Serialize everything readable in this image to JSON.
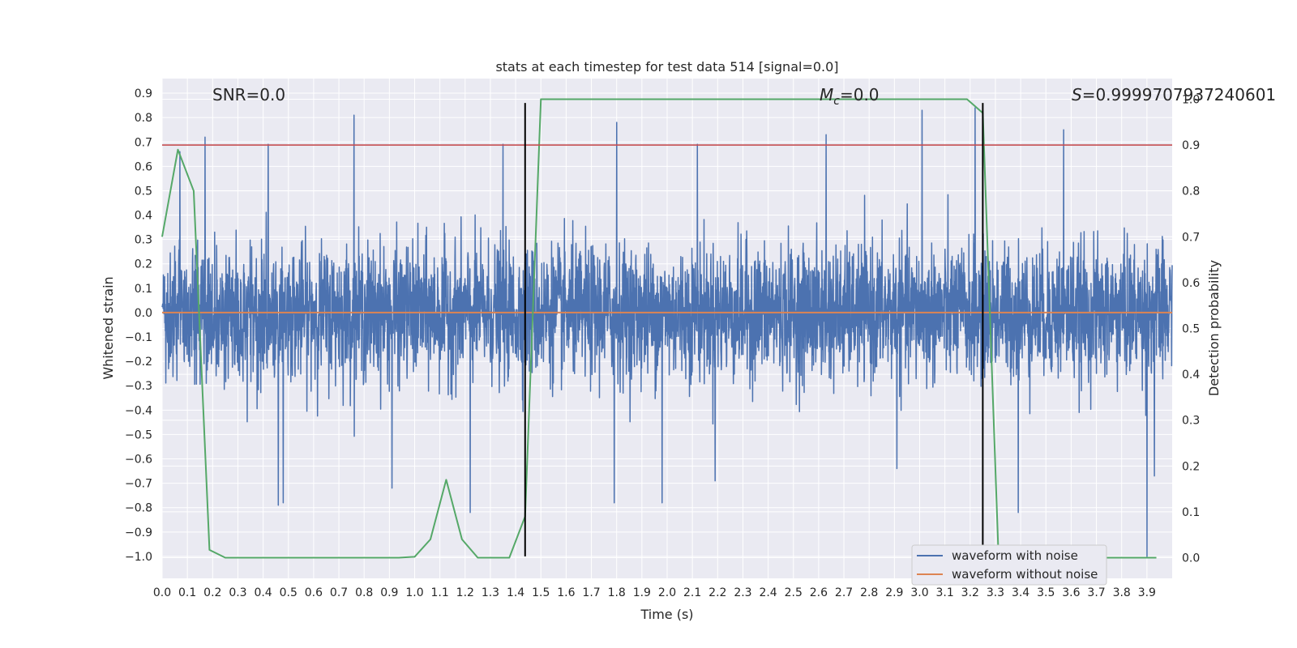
{
  "chart_data": {
    "type": "line",
    "title": "stats at each timestep for test data 514 [signal=0.0]",
    "xlabel": "Time (s)",
    "ylabel": "Whitened strain",
    "y2label": "Detection probability",
    "xlim": [
      0.0,
      4.0
    ],
    "ylim": [
      -1.09,
      0.96
    ],
    "y2lim": [
      -0.045,
      1.045
    ],
    "xticks": [
      "0.0",
      "0.1",
      "0.2",
      "0.3",
      "0.4",
      "0.5",
      "0.6",
      "0.7",
      "0.8",
      "0.9",
      "1.0",
      "1.1",
      "1.2",
      "1.3",
      "1.4",
      "1.5",
      "1.6",
      "1.7",
      "1.8",
      "1.9",
      "2.0",
      "2.1",
      "2.2",
      "2.3",
      "2.4",
      "2.5",
      "2.6",
      "2.7",
      "2.8",
      "2.9",
      "3.0",
      "3.1",
      "3.2",
      "3.3",
      "3.4",
      "3.5",
      "3.6",
      "3.7",
      "3.8",
      "3.9"
    ],
    "yticks": [
      "0.9",
      "0.8",
      "0.7",
      "0.6",
      "0.5",
      "0.4",
      "0.3",
      "0.2",
      "0.1",
      "0.0",
      "−0.1",
      "−0.2",
      "−0.3",
      "−0.4",
      "−0.5",
      "−0.6",
      "−0.7",
      "−0.8",
      "−0.9",
      "−1.0"
    ],
    "y2ticks": [
      "1.0",
      "0.9",
      "0.8",
      "0.7",
      "0.6",
      "0.5",
      "0.4",
      "0.3",
      "0.2",
      "0.1",
      "0.0"
    ],
    "grid": true,
    "legend_position": "lower-right",
    "annotations": {
      "snr": "SNR=0.0",
      "mc_symbol": "M",
      "mc_subscript": "c",
      "mc_value": "=0.0",
      "s_symbol": "S",
      "s_value": "=0.9999707937240601"
    },
    "series": [
      {
        "name": "waveform with noise",
        "color": "#4c72b0",
        "axis": "left",
        "description_values": "dense random noise between roughly -1.0 and 0.83",
        "spikes": [
          [
            0.07,
            0.66
          ],
          [
            0.17,
            0.72
          ],
          [
            0.42,
            0.69
          ],
          [
            0.76,
            0.81
          ],
          [
            1.35,
            0.69
          ],
          [
            1.8,
            0.78
          ],
          [
            2.12,
            0.69
          ],
          [
            2.63,
            0.73
          ],
          [
            3.01,
            0.83
          ],
          [
            3.22,
            0.84
          ],
          [
            3.57,
            0.75
          ],
          [
            0.46,
            -0.79
          ],
          [
            0.48,
            -0.78
          ],
          [
            0.91,
            -0.72
          ],
          [
            1.22,
            -0.82
          ],
          [
            1.79,
            -0.78
          ],
          [
            1.98,
            -0.78
          ],
          [
            2.19,
            -0.69
          ],
          [
            2.91,
            -0.64
          ],
          [
            3.39,
            -0.82
          ],
          [
            3.9,
            -1.0
          ],
          [
            3.93,
            -0.67
          ]
        ]
      },
      {
        "name": "waveform without noise",
        "color": "#dd8452",
        "axis": "left",
        "x": [
          0.0,
          4.0
        ],
        "y": [
          0.0,
          0.0
        ]
      },
      {
        "name": "detection probability",
        "color": "#55a868",
        "axis": "right",
        "x": [
          0.0,
          0.0625,
          0.125,
          0.1875,
          0.25,
          0.3125,
          0.375,
          0.4375,
          0.5,
          0.5625,
          0.625,
          0.6875,
          0.75,
          0.8125,
          0.875,
          0.9375,
          1.0,
          1.0625,
          1.125,
          1.1875,
          1.25,
          1.3125,
          1.375,
          1.4375,
          1.5,
          1.5625,
          1.625,
          1.6875,
          1.75,
          2.0,
          2.5,
          3.0,
          3.1875,
          3.25,
          3.3125,
          3.375,
          3.4375,
          3.5,
          3.5625,
          3.625,
          3.6875,
          3.75,
          3.8125,
          3.875,
          3.9375
        ],
        "y": [
          0.7,
          0.89,
          0.8,
          0.017,
          0.0,
          0.0,
          0.0,
          0.0,
          0.0,
          0.0,
          0.0,
          0.0,
          0.0,
          0.0,
          0.0,
          0.0,
          0.002,
          0.04,
          0.17,
          0.04,
          0.0,
          0.0,
          0.0,
          0.09,
          1.0,
          1.0,
          1.0,
          1.0,
          1.0,
          1.0,
          1.0,
          1.0,
          1.0,
          0.97,
          0.0,
          0.0,
          0.0,
          0.0,
          0.0,
          0.0,
          0.0,
          0.0,
          0.0,
          0.0,
          0.0
        ]
      },
      {
        "name": "threshold",
        "color": "#c44e52",
        "axis": "right",
        "x": [
          0.0,
          4.0
        ],
        "y": [
          0.9,
          0.9
        ]
      }
    ],
    "vertical_lines": [
      1.4375,
      3.25
    ],
    "vertical_line_range": [
      -1.0,
      0.86
    ]
  }
}
